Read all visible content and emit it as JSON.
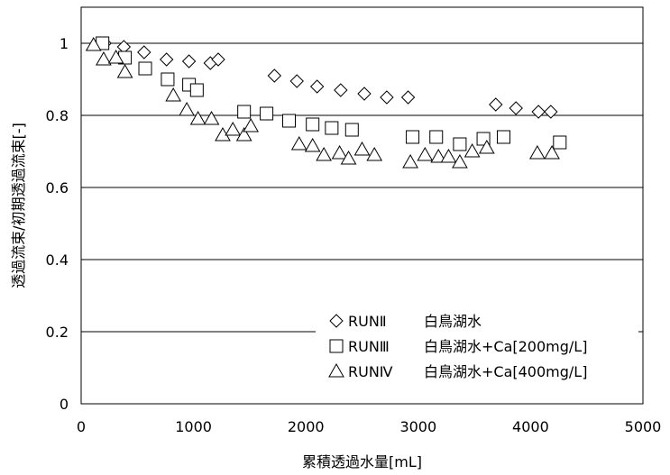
{
  "chart_data": {
    "type": "scatter",
    "title": "",
    "xlabel": "累積透過水量[mL]",
    "ylabel": "透過流束/初期透過流束[-]",
    "xlim": [
      0,
      5000
    ],
    "ylim": [
      0,
      1.1
    ],
    "x_ticks": [
      "0",
      "1000",
      "2000",
      "3000",
      "4000",
      "5000"
    ],
    "y_ticks": [
      "0",
      "0.2",
      "0.4",
      "0.6",
      "0.8",
      "1"
    ],
    "grid": "horizontal",
    "legend_position": "bottom-right",
    "series": [
      {
        "name": "RUNⅡ 白鳥湖水",
        "legend_code": "RUNⅡ",
        "legend_desc": "白鳥湖水",
        "marker": "diamond",
        "x": [
          170,
          210,
          380,
          560,
          760,
          960,
          1150,
          1220,
          1720,
          1920,
          2100,
          2310,
          2520,
          2720,
          2910,
          3690,
          3870,
          4070,
          4180
        ],
        "y": [
          1.0,
          1.0,
          0.99,
          0.975,
          0.955,
          0.95,
          0.945,
          0.955,
          0.91,
          0.895,
          0.88,
          0.87,
          0.86,
          0.85,
          0.85,
          0.83,
          0.82,
          0.81,
          0.81
        ]
      },
      {
        "name": "RUNⅢ 白鳥湖水+Ca[200mg/L]",
        "legend_code": "RUNⅢ",
        "legend_desc": "白鳥湖水+Ca[200mg/L]",
        "marker": "square",
        "x": [
          190,
          390,
          570,
          770,
          960,
          1030,
          1450,
          1650,
          1850,
          2060,
          2230,
          2410,
          2950,
          3160,
          3370,
          3580,
          3760,
          4260
        ],
        "y": [
          1.0,
          0.96,
          0.93,
          0.9,
          0.885,
          0.87,
          0.81,
          0.805,
          0.785,
          0.775,
          0.765,
          0.76,
          0.74,
          0.74,
          0.72,
          0.735,
          0.74,
          0.725
        ]
      },
      {
        "name": "RUNⅣ 白鳥湖水+Ca[400mg/L]",
        "legend_code": "RUNⅣ",
        "legend_desc": "白鳥湖水+Ca[400mg/L]",
        "marker": "triangle",
        "x": [
          110,
          200,
          310,
          390,
          820,
          940,
          1040,
          1160,
          1260,
          1350,
          1450,
          1510,
          1940,
          2060,
          2160,
          2300,
          2380,
          2500,
          2610,
          2930,
          3060,
          3180,
          3270,
          3370,
          3480,
          3610,
          4060,
          4190
        ],
        "y": [
          0.995,
          0.955,
          0.96,
          0.92,
          0.855,
          0.815,
          0.79,
          0.79,
          0.745,
          0.76,
          0.745,
          0.77,
          0.72,
          0.715,
          0.69,
          0.695,
          0.68,
          0.705,
          0.69,
          0.67,
          0.69,
          0.685,
          0.685,
          0.67,
          0.7,
          0.71,
          0.695,
          0.695
        ]
      }
    ]
  }
}
